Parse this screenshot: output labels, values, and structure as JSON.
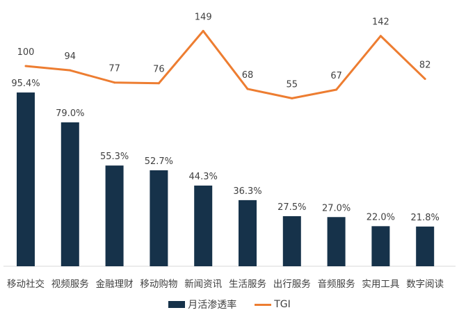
{
  "chart_data": {
    "type": "bar+line",
    "categories": [
      "移动社交",
      "视频服务",
      "金融理财",
      "移动购物",
      "新闻资讯",
      "生活服务",
      "出行服务",
      "音频服务",
      "实用工具",
      "数字阅读"
    ],
    "series": [
      {
        "name": "月活渗透率",
        "type": "bar",
        "values": [
          95.4,
          79.0,
          55.3,
          52.7,
          44.3,
          36.3,
          27.5,
          27.0,
          22.0,
          21.8
        ],
        "labels": [
          "95.4%",
          "79.0%",
          "55.3%",
          "52.7%",
          "44.3%",
          "36.3%",
          "27.5%",
          "27.0%",
          "22.0%",
          "21.8%"
        ],
        "color": "#16324a"
      },
      {
        "name": "TGI",
        "type": "line",
        "values": [
          100,
          94,
          77,
          76,
          149,
          68,
          55,
          67,
          142,
          82
        ],
        "labels": [
          "100",
          "94",
          "77",
          "76",
          "149",
          "68",
          "55",
          "67",
          "142",
          "82"
        ],
        "color": "#ed7d31"
      }
    ],
    "legend_position": "bottom",
    "grid": false
  }
}
